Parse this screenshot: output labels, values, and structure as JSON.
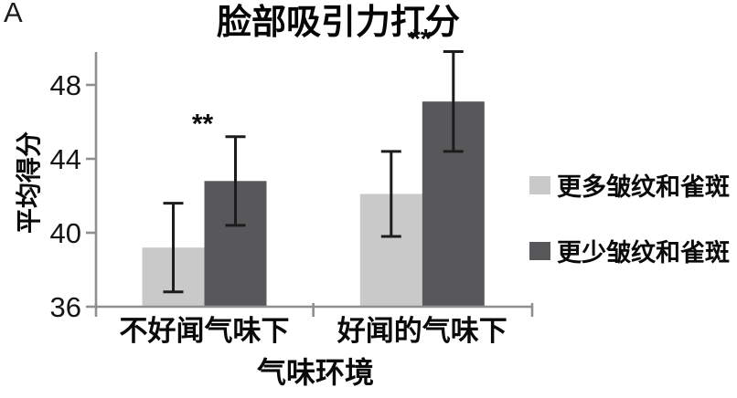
{
  "panel_label": "A",
  "chart_data": {
    "type": "bar",
    "title": "脸部吸引力打分",
    "xlabel": "气味环境",
    "ylabel": "平均得分",
    "categories": [
      "不好闻气味下",
      "好闻的气味下"
    ],
    "series": [
      {
        "name": "更多皱纹和雀斑",
        "color": "#c9c9c9",
        "values": [
          39.2,
          42.1
        ],
        "errors": [
          2.4,
          2.3
        ]
      },
      {
        "name": "更少皱纹和雀斑",
        "color": "#58585a",
        "values": [
          42.8,
          47.1
        ],
        "errors": [
          2.4,
          2.7
        ]
      }
    ],
    "yticks": [
      36,
      40,
      44,
      48
    ],
    "ylim": [
      36,
      50
    ],
    "baseline_value": 36,
    "significance": [
      {
        "group": 0,
        "label": "**"
      },
      {
        "group": 1,
        "label": "**"
      }
    ],
    "legend_position": "right",
    "grid": false,
    "axis_color": "#8f8f8f",
    "errorbar_color": "#1c1c1c",
    "text_color": "#141414"
  }
}
